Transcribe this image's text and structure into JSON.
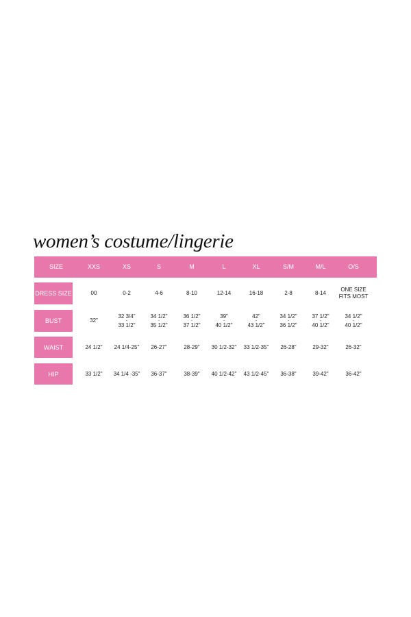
{
  "title": "women’s costume/lingerie",
  "accent_color": "#e877ab",
  "header": {
    "label": "SIZE",
    "sizes": [
      "XXS",
      "XS",
      "S",
      "M",
      "L",
      "XL",
      "S/M",
      "M/L",
      "O/S"
    ]
  },
  "rows": [
    {
      "label": "DRESS SIZE",
      "values": [
        [
          "00"
        ],
        [
          "0-2"
        ],
        [
          "4-6"
        ],
        [
          "8-10"
        ],
        [
          "12-14"
        ],
        [
          "16-18"
        ],
        [
          "2-8"
        ],
        [
          "8-14"
        ],
        [
          "ONE SIZE",
          "FITS MOST"
        ]
      ]
    },
    {
      "label": "BUST",
      "values": [
        [
          "32\""
        ],
        [
          "32 3/4\"",
          "-",
          "33 1/2\""
        ],
        [
          "34 1/2\"",
          "-",
          "35 1/2\""
        ],
        [
          "36 1/2\"",
          "-",
          "37 1/2\""
        ],
        [
          "39\"",
          "-",
          "40 1/2\""
        ],
        [
          "42\"",
          "-",
          "43 1/2\""
        ],
        [
          "34 1/2\"",
          "-",
          "36 1/2\""
        ],
        [
          "37 1/2\"",
          "-",
          "40 1/2\""
        ],
        [
          "34 1/2\"",
          "-",
          "40 1/2\""
        ]
      ]
    },
    {
      "label": "WAIST",
      "values": [
        [
          "24 1/2\""
        ],
        [
          "24 1/4-25\""
        ],
        [
          "26-27\""
        ],
        [
          "28-29\""
        ],
        [
          "30 1/2-32\""
        ],
        [
          "33 1/2-35\""
        ],
        [
          "26-28\""
        ],
        [
          "29-32\""
        ],
        [
          "26-32\""
        ]
      ]
    },
    {
      "label": "HIP",
      "values": [
        [
          "33 1/2\""
        ],
        [
          "34 1/4 -35\""
        ],
        [
          "36-37\""
        ],
        [
          "38-39\""
        ],
        [
          "40 1/2-42\""
        ],
        [
          "43 1/2-45\""
        ],
        [
          "36-38\""
        ],
        [
          "39-42\""
        ],
        [
          "36-42\""
        ]
      ]
    }
  ]
}
